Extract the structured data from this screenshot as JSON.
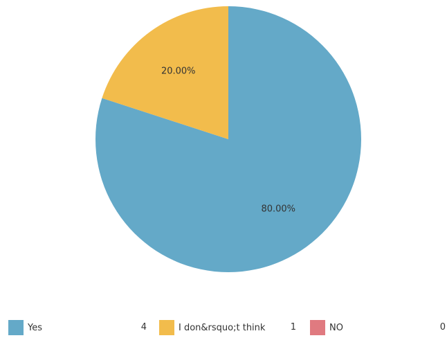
{
  "chart_data": {
    "type": "pie",
    "title": "",
    "slices": [
      {
        "label": "Yes",
        "value": 4,
        "percent_label": "80.00%",
        "color": "#64a9c8"
      },
      {
        "label": "I don&rsquo;t think",
        "value": 1,
        "percent_label": "20.00%",
        "color": "#f2bc4c"
      },
      {
        "label": "NO",
        "value": 0,
        "percent_label": "",
        "color": "#e07a80"
      }
    ],
    "legend_position": "bottom"
  },
  "legend": {
    "items": [
      {
        "label": "Yes",
        "value": "4",
        "color": "#64a9c8"
      },
      {
        "label": "I don&rsquo;t think",
        "value": "1",
        "color": "#f2bc4c"
      },
      {
        "label": "NO",
        "value": "0",
        "color": "#e07a80"
      }
    ]
  }
}
